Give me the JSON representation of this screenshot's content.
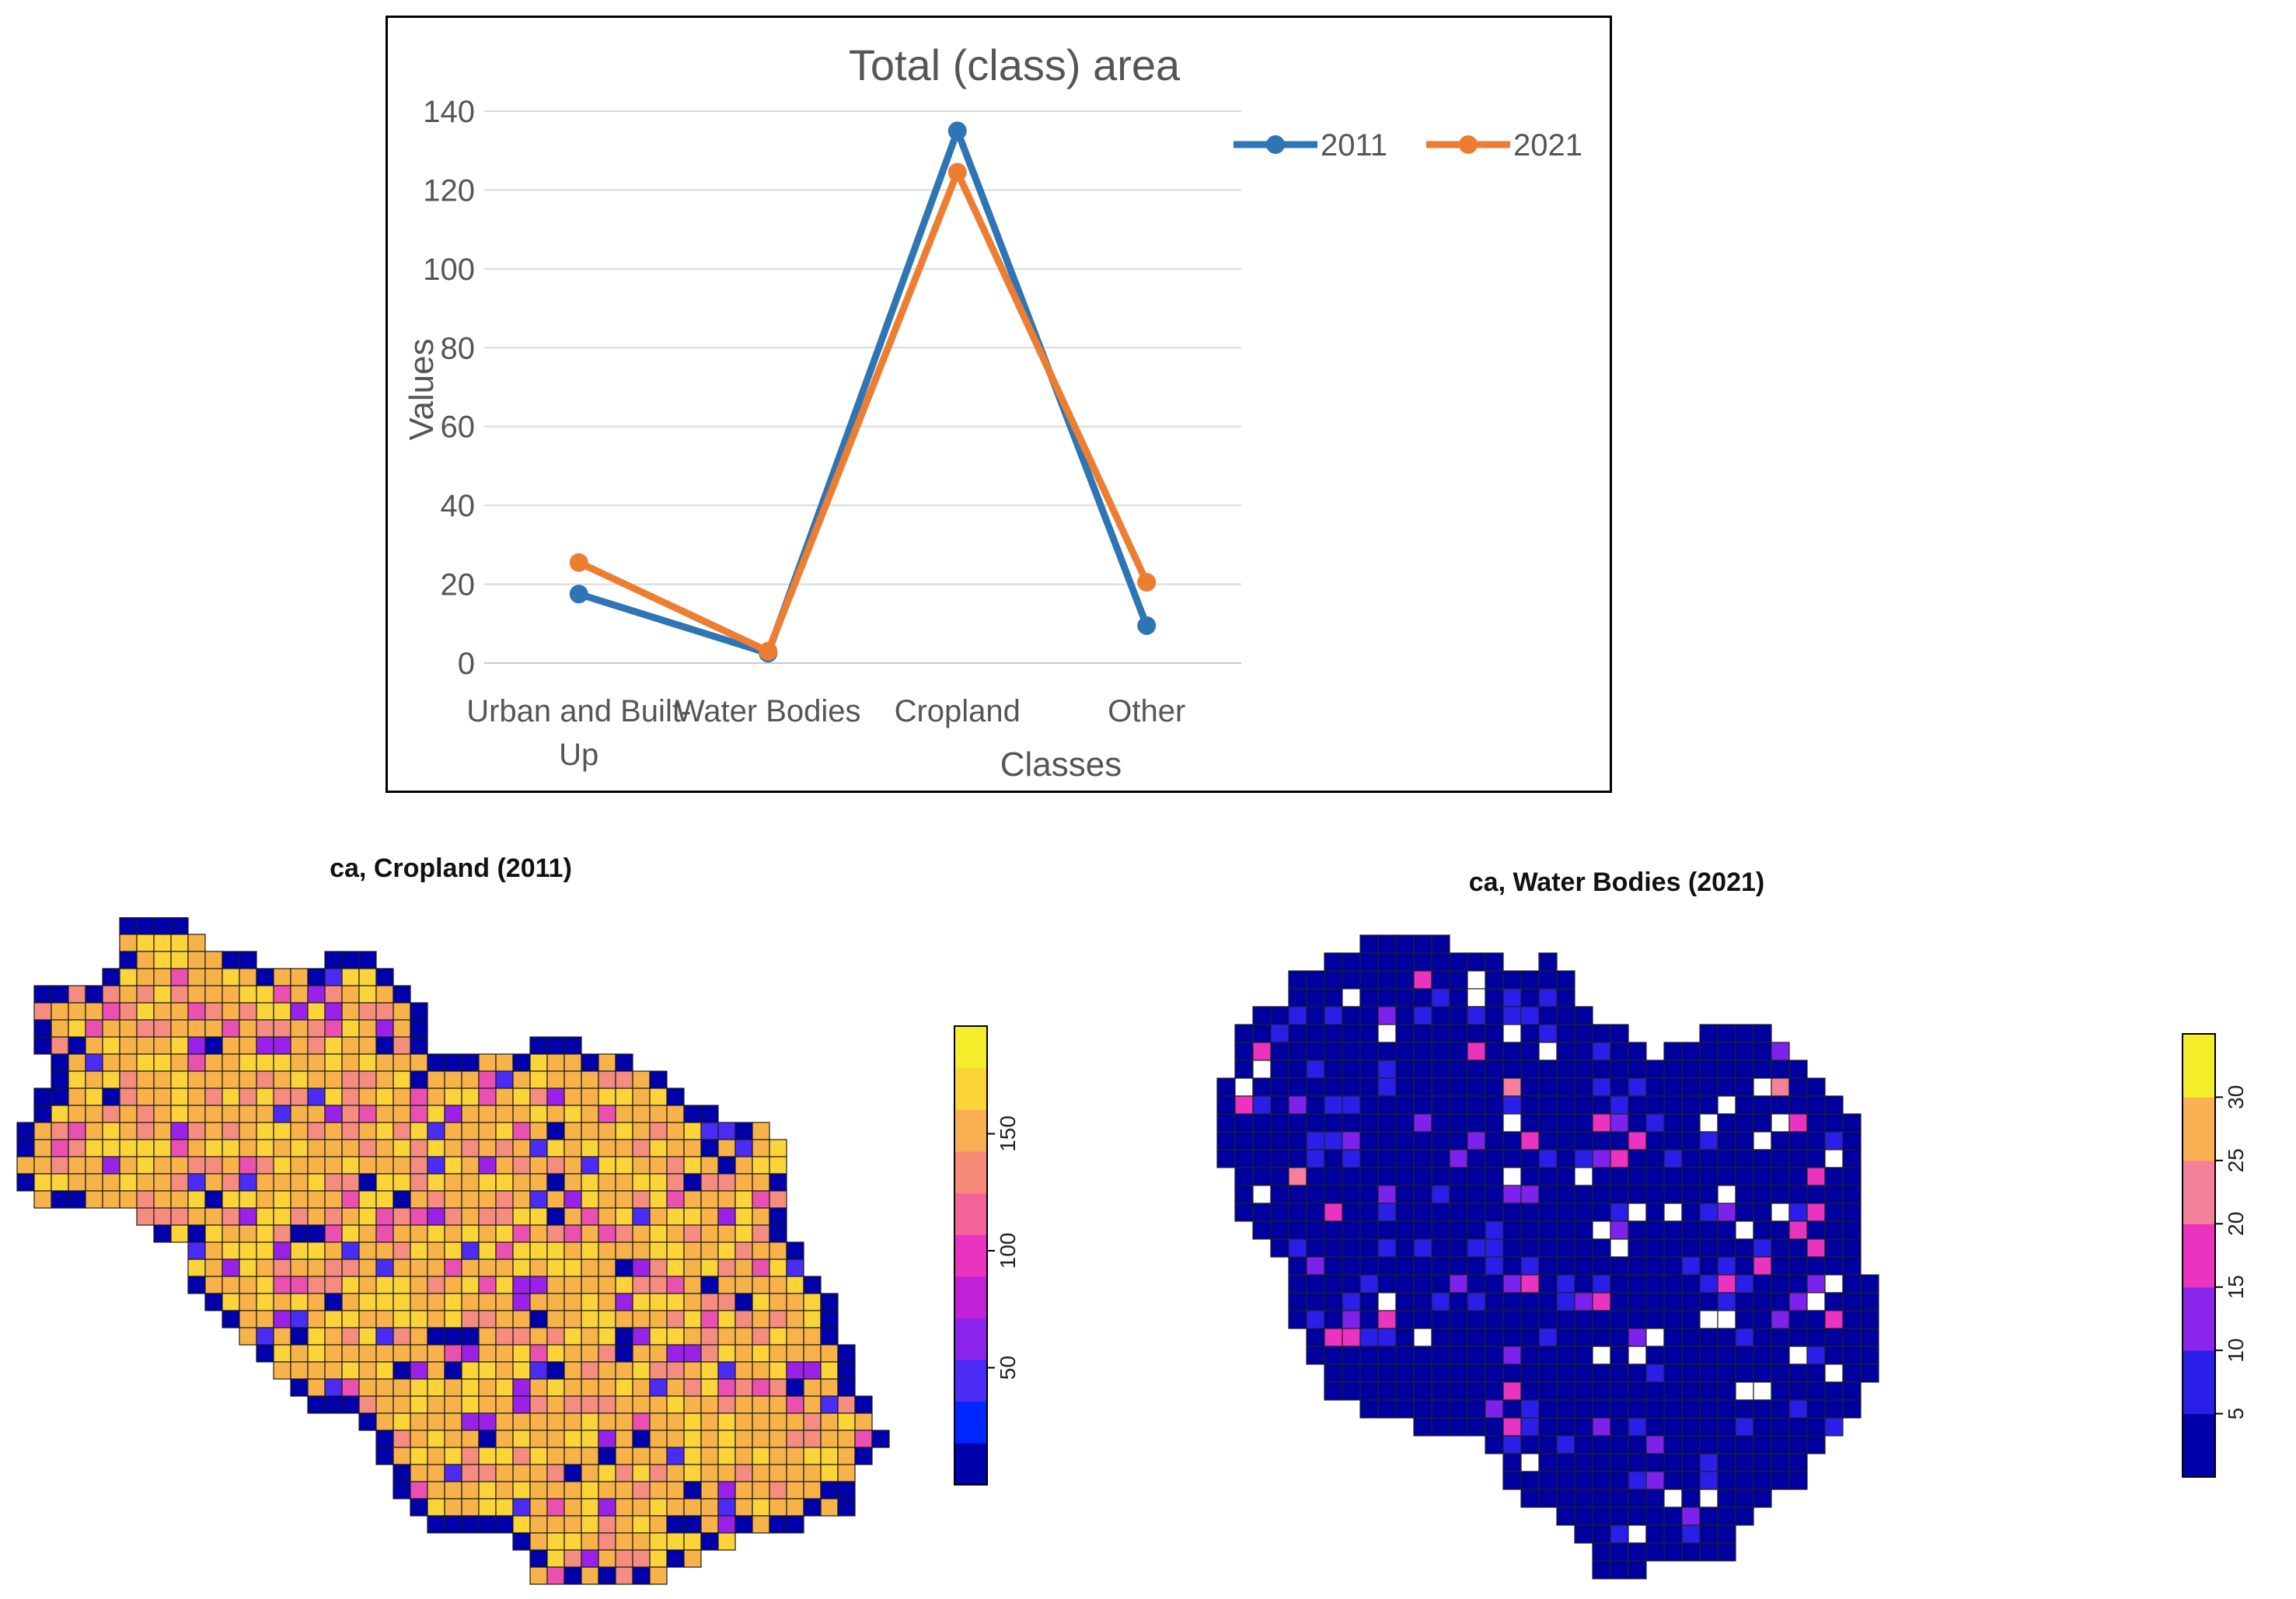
{
  "chart_data": [
    {
      "type": "line",
      "title": "Total (class) area",
      "xlabel": "Classes",
      "ylabel": "Values",
      "categories": [
        "Urban and Built-Up",
        "Water Bodies",
        "Cropland",
        "Other"
      ],
      "category_lines": [
        [
          "Urban and Built-",
          "Up"
        ],
        [
          "Water Bodies"
        ],
        [
          "Cropland"
        ],
        [
          "Other"
        ]
      ],
      "ylim": [
        0,
        140
      ],
      "yticks": [
        0,
        20,
        40,
        60,
        80,
        100,
        120,
        140
      ],
      "grid": true,
      "legend": "top-right",
      "series": [
        {
          "name": "2011",
          "color": "#2e75b6",
          "values": [
            17.5,
            2.5,
            135,
            9.5
          ]
        },
        {
          "name": "2021",
          "color": "#ed7d31",
          "values": [
            25.5,
            3,
            124.5,
            20.5
          ]
        }
      ]
    },
    {
      "type": "heatmap",
      "title": "ca, Cropland (2011)",
      "colorbar": {
        "ticks": [
          50,
          100,
          150
        ],
        "min": 0,
        "max": 196,
        "colors": [
          "#0000aa",
          "#0026ff",
          "#4b2cf4",
          "#8b25ec",
          "#c020d6",
          "#ea34c0",
          "#f4649a",
          "#f88a78",
          "#fab052",
          "#fbd43a",
          "#f4ee2a"
        ]
      },
      "palette_mix": [
        {
          "color": "#f7b24a",
          "weight": 46
        },
        {
          "color": "#fbd43a",
          "weight": 24
        },
        {
          "color": "#f48c80",
          "weight": 14
        },
        {
          "color": "#ea50b0",
          "weight": 5
        },
        {
          "color": "#9a22e8",
          "weight": 4
        },
        {
          "color": "#4a2cf4",
          "weight": 3
        },
        {
          "color": "#0000aa",
          "weight": 4
        }
      ]
    },
    {
      "type": "heatmap",
      "title": "ca, Water Bodies (2021)",
      "colorbar": {
        "ticks": [
          5,
          10,
          15,
          20,
          25,
          30
        ],
        "min": 0,
        "max": 35,
        "colors": [
          "#0000aa",
          "#2a1fe8",
          "#8b25ec",
          "#ea34c0",
          "#f4809a",
          "#fab052",
          "#f4ee2a"
        ]
      },
      "palette_mix": [
        {
          "color": "#00009e",
          "weight": 80
        },
        {
          "color": "#2a1fe8",
          "weight": 9
        },
        {
          "color": "#7d22ec",
          "weight": 3
        },
        {
          "color": "#ffffff",
          "weight": 5
        },
        {
          "color": "#ea34c0",
          "weight": 2
        },
        {
          "color": "#f4809a",
          "weight": 1
        }
      ]
    }
  ]
}
